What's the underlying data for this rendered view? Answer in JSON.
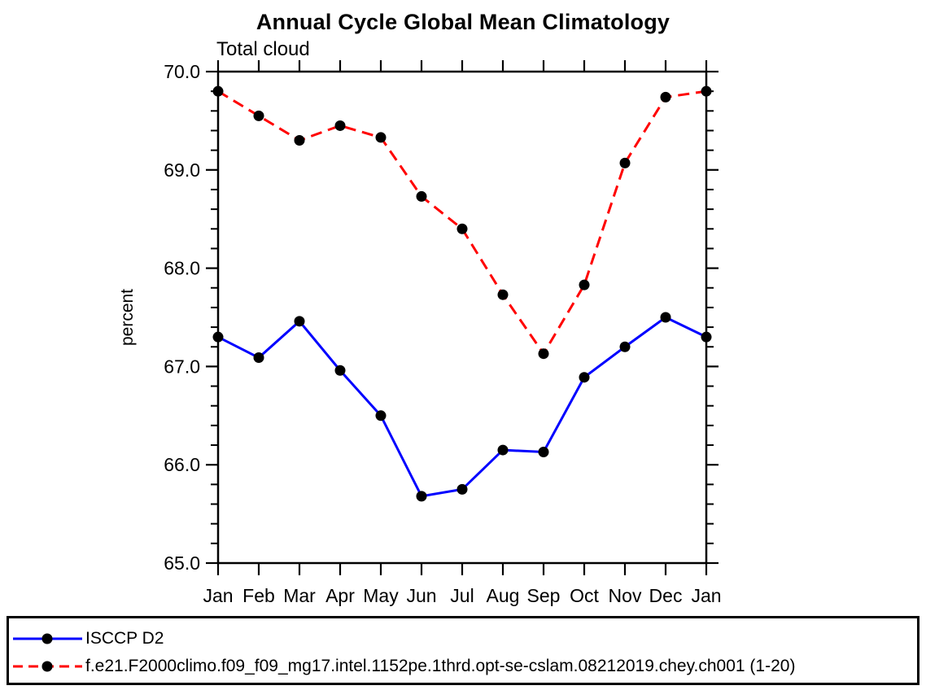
{
  "title": "Annual Cycle Global Mean Climatology",
  "subtitle": "Total cloud",
  "chart_data": {
    "type": "line",
    "x_categories": [
      "Jan",
      "Feb",
      "Mar",
      "Apr",
      "May",
      "Jun",
      "Jul",
      "Aug",
      "Sep",
      "Oct",
      "Nov",
      "Dec",
      "Jan"
    ],
    "ylabel": "percent",
    "ylim": [
      65.0,
      70.0
    ],
    "ytick_major": 1.0,
    "ytick_minor": 0.2,
    "ytick_labels": [
      "65.0",
      "66.0",
      "67.0",
      "68.0",
      "69.0",
      "70.0"
    ],
    "grid": false,
    "legend_position": "bottom-left-box",
    "marker": "filled-circle",
    "marker_color": "#000000",
    "axis_color": "#000000",
    "series": [
      {
        "name": "ISCCP D2",
        "color": "#0000ff",
        "dash": false,
        "values": [
          67.3,
          67.09,
          67.46,
          66.96,
          66.5,
          65.68,
          65.75,
          66.15,
          66.13,
          66.89,
          67.2,
          67.5,
          67.3
        ]
      },
      {
        "name": "f.e21.F2000climo.f09_f09_mg17.intel.1152pe.1thrd.opt-se-cslam.08212019.chey.ch001 (1-20)",
        "color": "#ff0000",
        "dash": true,
        "values": [
          69.8,
          69.55,
          69.3,
          69.45,
          69.33,
          68.73,
          68.4,
          67.73,
          67.13,
          67.83,
          69.07,
          69.74,
          69.8
        ]
      }
    ]
  }
}
